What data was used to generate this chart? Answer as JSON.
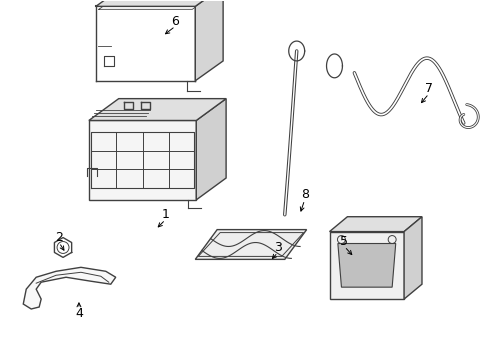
{
  "bg_color": "#ffffff",
  "line_color": "#404040",
  "label_color": "#000000",
  "figsize": [
    4.89,
    3.6
  ],
  "dpi": 100
}
